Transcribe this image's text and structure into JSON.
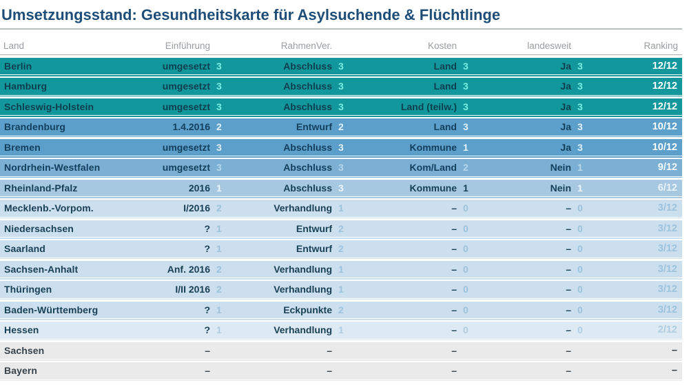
{
  "title": "Umsetzungsstand: Gesundheitskarte für Asylsuchende & Flüchtlinge",
  "header": {
    "land": "Land",
    "einfuehrung": "Einführung",
    "rahmenver": "RahmenVer.",
    "kosten": "Kosten",
    "landesweit": "landesweit",
    "ranking": "Ranking"
  },
  "palette": {
    "t12": {
      "bg": "#12989C",
      "text": "#0C3F4F",
      "num": "#79EEE2",
      "rank": "#FFFFFF"
    },
    "t10": {
      "bg": "#5C9FCA",
      "text": "#133F5C",
      "num": "#E3F1FA",
      "rank": "#FFFFFF"
    },
    "t9": {
      "bg": "#7BB0D4",
      "text": "#133F5C",
      "num": "#B9D7EA",
      "rank": "#F2F8FC"
    },
    "t6": {
      "bg": "#A6C8E0",
      "text": "#16405A",
      "num": "#EDF5FB",
      "rank": "#EAF3FA"
    },
    "t3": {
      "bg": "#CBDFEE",
      "text": "#1A4055",
      "num": "#9CC2DC",
      "rank": "#9CC2DC"
    },
    "t2": {
      "bg": "#DDEAF4",
      "text": "#1A4055",
      "num": "#AFCCE1",
      "rank": "#AFCCE1"
    },
    "t0": {
      "bg": "#EAEAEA",
      "text": "#38434B",
      "num": "#38434B",
      "rank": "#38434B"
    }
  },
  "chart_data": {
    "type": "table",
    "title": "Umsetzungsstand: Gesundheitskarte für Asylsuchende & Flüchtlinge",
    "columns": [
      "Land",
      "Einführung",
      "RahmenVer.",
      "Kosten",
      "landesweit",
      "Ranking"
    ],
    "max_score": "12/12",
    "rows": [
      {
        "land": "Berlin",
        "einfuehrung": "umgesetzt",
        "einfuehrung_score": "3",
        "rahmenver": "Abschluss",
        "rahmenver_score": "3",
        "kosten": "Land",
        "kosten_score": "3",
        "landesweit": "Ja",
        "landesweit_score": "3",
        "ranking": "12/12",
        "tier": "t12"
      },
      {
        "land": "Hamburg",
        "einfuehrung": "umgesetzt",
        "einfuehrung_score": "3",
        "rahmenver": "Abschluss",
        "rahmenver_score": "3",
        "kosten": "Land",
        "kosten_score": "3",
        "landesweit": "Ja",
        "landesweit_score": "3",
        "ranking": "12/12",
        "tier": "t12"
      },
      {
        "land": "Schleswig-Holstein",
        "einfuehrung": "umgesetzt",
        "einfuehrung_score": "3",
        "rahmenver": "Abschluss",
        "rahmenver_score": "3",
        "kosten": "Land (teilw.)",
        "kosten_score": "3",
        "landesweit": "Ja",
        "landesweit_score": "3",
        "ranking": "12/12",
        "tier": "t12"
      },
      {
        "land": "Brandenburg",
        "einfuehrung": "1.4.2016",
        "einfuehrung_score": "2",
        "rahmenver": "Entwurf",
        "rahmenver_score": "2",
        "kosten": "Land",
        "kosten_score": "3",
        "landesweit": "Ja",
        "landesweit_score": "3",
        "ranking": "10/12",
        "tier": "t10"
      },
      {
        "land": "Bremen",
        "einfuehrung": "umgesetzt",
        "einfuehrung_score": "3",
        "rahmenver": "Abschluss",
        "rahmenver_score": "3",
        "kosten": "Kommune",
        "kosten_score": "1",
        "landesweit": "Ja",
        "landesweit_score": "3",
        "ranking": "10/12",
        "tier": "t10"
      },
      {
        "land": "Nordrhein-Westfalen",
        "einfuehrung": "umgesetzt",
        "einfuehrung_score": "3",
        "rahmenver": "Abschluss",
        "rahmenver_score": "3",
        "kosten": "Kom/Land",
        "kosten_score": "2",
        "landesweit": "Nein",
        "landesweit_score": "1",
        "ranking": "9/12",
        "tier": "t9"
      },
      {
        "land": "Rheinland-Pfalz",
        "einfuehrung": "2016",
        "einfuehrung_score": "1",
        "rahmenver": "Abschluss",
        "rahmenver_score": "3",
        "kosten": "Kommune",
        "kosten_score": "1",
        "kosten_score_dark": true,
        "landesweit": "Nein",
        "landesweit_score": "1",
        "ranking": "6/12",
        "tier": "t6"
      },
      {
        "land": "Mecklenb.-Vorpom.",
        "einfuehrung": "I/2016",
        "einfuehrung_score": "2",
        "rahmenver": "Verhandlung",
        "rahmenver_score": "1",
        "kosten": "–",
        "kosten_score": "0",
        "landesweit": "–",
        "landesweit_score": "0",
        "ranking": "3/12",
        "tier": "t3"
      },
      {
        "land": "Niedersachsen",
        "einfuehrung": "?",
        "einfuehrung_score": "1",
        "rahmenver": "Entwurf",
        "rahmenver_score": "2",
        "kosten": "–",
        "kosten_score": "0",
        "landesweit": "–",
        "landesweit_score": "0",
        "ranking": "3/12",
        "tier": "t3"
      },
      {
        "land": "Saarland",
        "einfuehrung": "?",
        "einfuehrung_score": "1",
        "rahmenver": "Entwurf",
        "rahmenver_score": "2",
        "kosten": "–",
        "kosten_score": "0",
        "landesweit": "–",
        "landesweit_score": "0",
        "ranking": "3/12",
        "tier": "t3"
      },
      {
        "land": "Sachsen-Anhalt",
        "einfuehrung": "Anf. 2016",
        "einfuehrung_score": "2",
        "rahmenver": "Verhandlung",
        "rahmenver_score": "1",
        "kosten": "–",
        "kosten_score": "0",
        "landesweit": "–",
        "landesweit_score": "0",
        "ranking": "3/12",
        "tier": "t3"
      },
      {
        "land": "Thüringen",
        "einfuehrung": "I/II 2016",
        "einfuehrung_score": "2",
        "rahmenver": "Verhandlung",
        "rahmenver_score": "1",
        "kosten": "–",
        "kosten_score": "0",
        "landesweit": "–",
        "landesweit_score": "0",
        "ranking": "3/12",
        "tier": "t3"
      },
      {
        "land": "Baden-Württemberg",
        "einfuehrung": "?",
        "einfuehrung_score": "1",
        "rahmenver": "Eckpunkte",
        "rahmenver_score": "2",
        "kosten": "–",
        "kosten_score": "0",
        "landesweit": "–",
        "landesweit_score": "0",
        "ranking": "3/12",
        "tier": "t3"
      },
      {
        "land": "Hessen",
        "einfuehrung": "?",
        "einfuehrung_score": "1",
        "rahmenver": "Verhandlung",
        "rahmenver_score": "1",
        "kosten": "–",
        "kosten_score": "0",
        "landesweit": "–",
        "landesweit_score": "0",
        "ranking": "2/12",
        "tier": "t2"
      },
      {
        "land": "Sachsen",
        "einfuehrung": "–",
        "einfuehrung_score": "",
        "rahmenver": "–",
        "rahmenver_score": "",
        "kosten": "–",
        "kosten_score": "",
        "landesweit": "–",
        "landesweit_score": "",
        "ranking": "–",
        "tier": "t0"
      },
      {
        "land": "Bayern",
        "einfuehrung": "–",
        "einfuehrung_score": "",
        "rahmenver": "–",
        "rahmenver_score": "",
        "kosten": "–",
        "kosten_score": "",
        "landesweit": "–",
        "landesweit_score": "",
        "ranking": "–",
        "tier": "t0"
      }
    ]
  }
}
